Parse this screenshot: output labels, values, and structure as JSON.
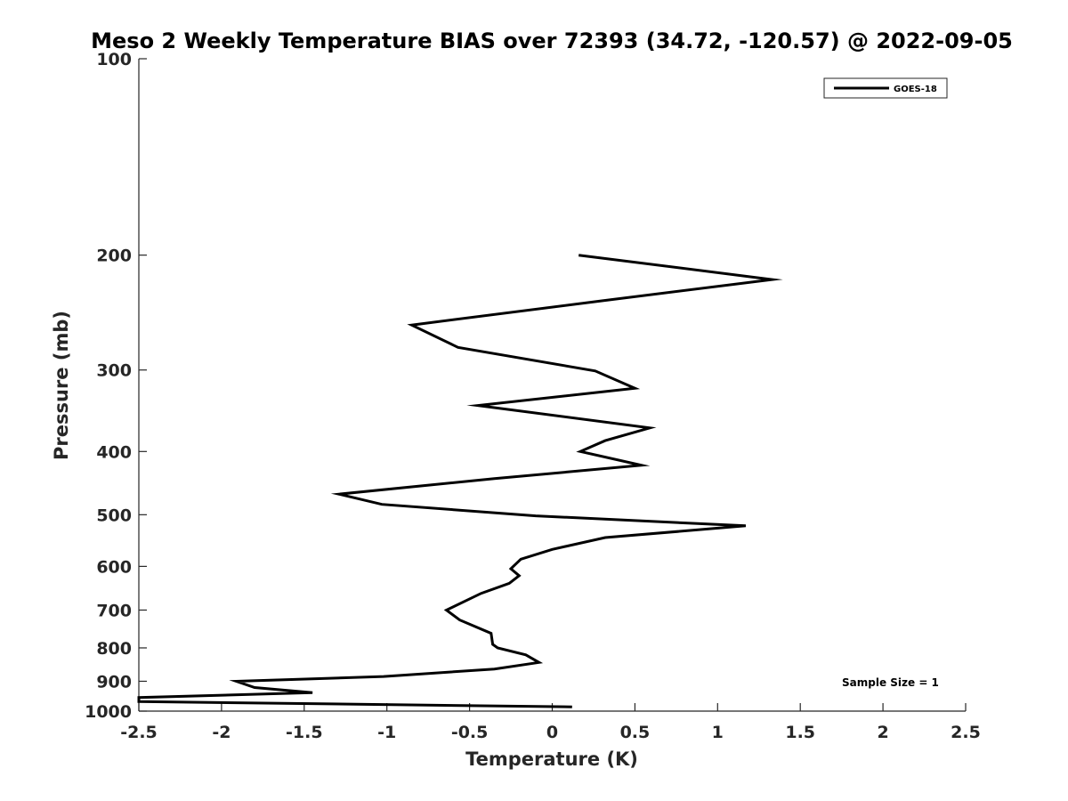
{
  "chart_data": {
    "type": "line",
    "title": "Meso 2 Weekly Temperature BIAS over 72393 (34.72, -120.57) @ 2022-09-05",
    "xlabel": "Temperature (K)",
    "ylabel": "Pressure (mb)",
    "xlim": [
      -2.5,
      2.5
    ],
    "ylim": [
      100,
      1000
    ],
    "yscale": "log",
    "yreversed": true,
    "x_ticks": [
      "-2.5",
      "-2",
      "-1.5",
      "-1",
      "-0.5",
      "0",
      "0.5",
      "1",
      "1.5",
      "2",
      "2.5"
    ],
    "y_ticks": [
      "100",
      "200",
      "300",
      "400",
      "500",
      "600",
      "700",
      "800",
      "900",
      "1000"
    ],
    "legend": {
      "placement": "top-right",
      "entries": [
        "GOES-18"
      ]
    },
    "annotation": "Sample Size = 1",
    "grid": false,
    "series": [
      {
        "name": "GOES-18",
        "color": "#000000",
        "points": [
          {
            "t": 0.16,
            "p": 200
          },
          {
            "t": 1.33,
            "p": 218
          },
          {
            "t": 0.3,
            "p": 235
          },
          {
            "t": -0.85,
            "p": 256
          },
          {
            "t": -0.57,
            "p": 277
          },
          {
            "t": 0.26,
            "p": 301
          },
          {
            "t": 0.5,
            "p": 320
          },
          {
            "t": -0.45,
            "p": 340
          },
          {
            "t": 0.59,
            "p": 368
          },
          {
            "t": 0.32,
            "p": 385
          },
          {
            "t": 0.17,
            "p": 400
          },
          {
            "t": 0.54,
            "p": 420
          },
          {
            "t": -0.35,
            "p": 440
          },
          {
            "t": -1.29,
            "p": 465
          },
          {
            "t": -1.03,
            "p": 482
          },
          {
            "t": -0.1,
            "p": 502
          },
          {
            "t": 1.17,
            "p": 520
          },
          {
            "t": 0.32,
            "p": 542
          },
          {
            "t": 0.0,
            "p": 565
          },
          {
            "t": -0.19,
            "p": 585
          },
          {
            "t": -0.25,
            "p": 605
          },
          {
            "t": -0.2,
            "p": 620
          },
          {
            "t": -0.26,
            "p": 637
          },
          {
            "t": -0.43,
            "p": 660
          },
          {
            "t": -0.64,
            "p": 700
          },
          {
            "t": -0.56,
            "p": 725
          },
          {
            "t": -0.37,
            "p": 760
          },
          {
            "t": -0.36,
            "p": 790
          },
          {
            "t": -0.33,
            "p": 800
          },
          {
            "t": -0.16,
            "p": 820
          },
          {
            "t": -0.08,
            "p": 842
          },
          {
            "t": -0.35,
            "p": 862
          },
          {
            "t": -1.02,
            "p": 885
          },
          {
            "t": -1.91,
            "p": 900
          },
          {
            "t": -1.8,
            "p": 920
          },
          {
            "t": -1.45,
            "p": 937
          },
          {
            "t": -2.5,
            "p": 953
          },
          {
            "t": -2.5,
            "p": 967
          },
          {
            "t": 0.12,
            "p": 985
          }
        ]
      }
    ]
  }
}
